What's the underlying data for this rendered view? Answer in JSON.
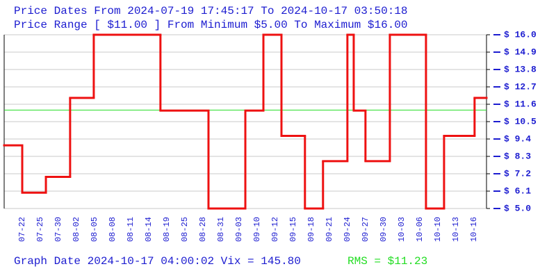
{
  "chart_data": {
    "type": "step",
    "title": "Price Dates From 2024-07-19 17:45:17 To 2024-10-17 03:50:18",
    "subtitle": "Price Range [ $11.00 ] From Minimum $5.00 To Maximum $16.00",
    "footer": "Graph Date 2024-10-17 04:00:02 Vix = 145.80",
    "rms_label": "RMS = $11.23",
    "rms": 11.23,
    "rms_color": "#22dd22",
    "series": [
      {
        "name": "Price",
        "color": "#ee1111",
        "x": [
          -1,
          0,
          1.31,
          2.65,
          3.96,
          7.65,
          10.31,
          12.35,
          13.35,
          14.35,
          15.65,
          16.65,
          18,
          18.35,
          19,
          20.35,
          22.35,
          23.35,
          25.04
        ],
        "values": [
          9.0,
          6.0,
          7.0,
          12.0,
          16.0,
          11.2,
          5.0,
          11.2,
          16.0,
          9.6,
          5.0,
          8.0,
          16.0,
          11.2,
          8.0,
          16.0,
          5.0,
          9.6,
          12.0
        ]
      }
    ],
    "xlim": [
      -1,
      25.7
    ],
    "xticks": [
      {
        "value": 0,
        "label": "07-22"
      },
      {
        "value": 1,
        "label": "07-25"
      },
      {
        "value": 2,
        "label": "07-30"
      },
      {
        "value": 3,
        "label": "08-02"
      },
      {
        "value": 4,
        "label": "08-05"
      },
      {
        "value": 5,
        "label": "08-08"
      },
      {
        "value": 6,
        "label": "08-11"
      },
      {
        "value": 7,
        "label": "08-14"
      },
      {
        "value": 8,
        "label": "08-19"
      },
      {
        "value": 9,
        "label": "08-25"
      },
      {
        "value": 10,
        "label": "08-28"
      },
      {
        "value": 11,
        "label": "08-31"
      },
      {
        "value": 12,
        "label": "09-03"
      },
      {
        "value": 13,
        "label": "09-10"
      },
      {
        "value": 14,
        "label": "09-12"
      },
      {
        "value": 15,
        "label": "09-15"
      },
      {
        "value": 16,
        "label": "09-18"
      },
      {
        "value": 17,
        "label": "09-21"
      },
      {
        "value": 18,
        "label": "09-24"
      },
      {
        "value": 19,
        "label": "09-27"
      },
      {
        "value": 20,
        "label": "09-30"
      },
      {
        "value": 21,
        "label": "10-03"
      },
      {
        "value": 22,
        "label": "10-06"
      },
      {
        "value": 23,
        "label": "10-10"
      },
      {
        "value": 24,
        "label": "10-13"
      },
      {
        "value": 25,
        "label": "10-16"
      }
    ],
    "ylim": [
      5.0,
      16.0
    ],
    "yticks": [
      {
        "value": 16.0,
        "label": "$ 16.0"
      },
      {
        "value": 14.9,
        "label": "$ 14.9"
      },
      {
        "value": 13.8,
        "label": "$ 13.8"
      },
      {
        "value": 12.7,
        "label": "$ 12.7"
      },
      {
        "value": 11.6,
        "label": "$ 11.6"
      },
      {
        "value": 10.5,
        "label": "$ 10.5"
      },
      {
        "value": 9.4,
        "label": "$ 9.4"
      },
      {
        "value": 8.3,
        "label": "$ 8.3"
      },
      {
        "value": 7.2,
        "label": "$ 7.2"
      },
      {
        "value": 6.1,
        "label": "$ 6.1"
      },
      {
        "value": 5.0,
        "label": "$ 5.0"
      }
    ],
    "grid": true
  }
}
